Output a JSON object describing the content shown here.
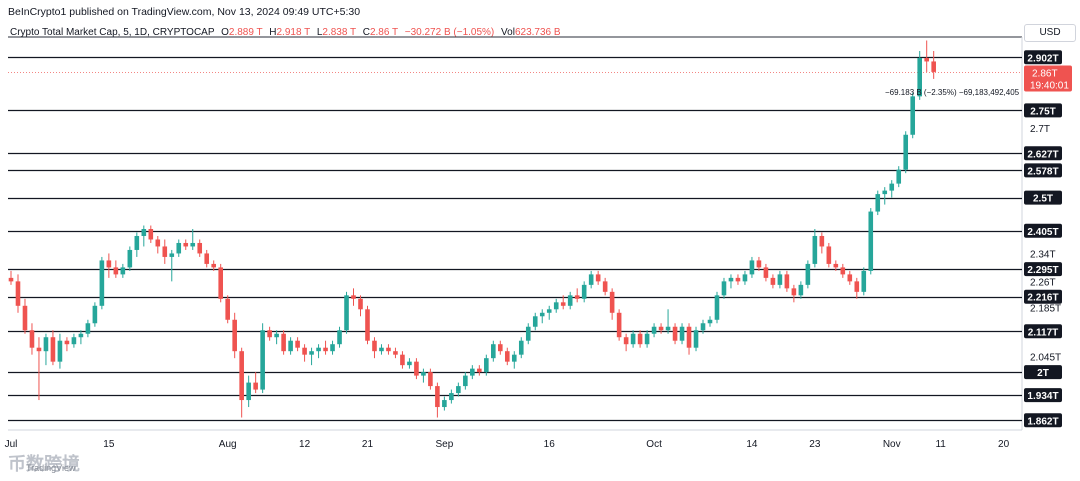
{
  "header": {
    "published_line": "BeInCrypto1 published on TradingView.com, Nov 13, 2024 09:49 UTC+5:30",
    "symbol": "Crypto Total Market Cap, 5, 1D, CRYPTOCAP",
    "open_label": "O",
    "open": "2.889 T",
    "high_label": "H",
    "high": "2.918 T",
    "low_label": "L",
    "low": "2.838 T",
    "close_label": "C",
    "close": "2.86 T",
    "change": "−30.272 B (−1.05%)",
    "vol_label": "Vol",
    "vol": "623.736 B"
  },
  "currency_button": "USD",
  "watermark": {
    "text": "币数跨境",
    "brand": "TradingView"
  },
  "colors": {
    "up": "#26a69a",
    "down": "#ef5350",
    "level_line": "#131722",
    "tag_bg": "#131722",
    "price_tag": "#ef5350"
  },
  "chart_data": {
    "type": "candlestick",
    "ylim": [
      1.84,
      2.95
    ],
    "x_labels": [
      "Jul",
      "15",
      "Aug",
      "12",
      "21",
      "Sep",
      "16",
      "Oct",
      "14",
      "23",
      "Nov",
      "11",
      "20"
    ],
    "x_label_days": [
      0,
      14,
      31,
      42,
      51,
      62,
      77,
      92,
      106,
      115,
      126,
      133,
      142
    ],
    "level_tags": [
      "2.902T",
      "2.75T",
      "2.627T",
      "2.578T",
      "2.5T",
      "2.405T",
      "2.295T",
      "2.216T",
      "2.117T",
      "2T",
      "1.934T",
      "1.862T"
    ],
    "levels": [
      2.902,
      2.75,
      2.627,
      2.578,
      2.5,
      2.405,
      2.295,
      2.216,
      2.117,
      2.0,
      1.934,
      1.862
    ],
    "axis_labels": [
      "2.7T",
      "2.34T",
      "2.26T",
      "2.185T",
      "2.045T"
    ],
    "axis_values": [
      2.7,
      2.34,
      2.26,
      2.185,
      2.045
    ],
    "current_price_tag": "2.86T",
    "countdown_tag": "19:40:01",
    "current_price": 2.86,
    "annotation": "−69.183 B (−2.35%) −69,183,492,405",
    "candles": [
      {
        "d": 0,
        "o": 2.27,
        "h": 2.29,
        "l": 2.25,
        "c": 2.26
      },
      {
        "d": 1,
        "o": 2.26,
        "h": 2.28,
        "l": 2.17,
        "c": 2.19
      },
      {
        "d": 2,
        "o": 2.19,
        "h": 2.21,
        "l": 2.11,
        "c": 2.12
      },
      {
        "d": 3,
        "o": 2.12,
        "h": 2.14,
        "l": 2.05,
        "c": 2.07
      },
      {
        "d": 4,
        "o": 2.07,
        "h": 2.1,
        "l": 1.92,
        "c": 2.06
      },
      {
        "d": 5,
        "o": 2.06,
        "h": 2.11,
        "l": 2.02,
        "c": 2.1
      },
      {
        "d": 6,
        "o": 2.1,
        "h": 2.12,
        "l": 2.02,
        "c": 2.03
      },
      {
        "d": 7,
        "o": 2.03,
        "h": 2.11,
        "l": 2.01,
        "c": 2.09
      },
      {
        "d": 8,
        "o": 2.09,
        "h": 2.1,
        "l": 2.06,
        "c": 2.08
      },
      {
        "d": 9,
        "o": 2.08,
        "h": 2.11,
        "l": 2.07,
        "c": 2.1
      },
      {
        "d": 10,
        "o": 2.1,
        "h": 2.12,
        "l": 2.08,
        "c": 2.11
      },
      {
        "d": 11,
        "o": 2.11,
        "h": 2.15,
        "l": 2.1,
        "c": 2.14
      },
      {
        "d": 12,
        "o": 2.14,
        "h": 2.2,
        "l": 2.13,
        "c": 2.19
      },
      {
        "d": 13,
        "o": 2.19,
        "h": 2.33,
        "l": 2.18,
        "c": 2.32
      },
      {
        "d": 14,
        "o": 2.32,
        "h": 2.34,
        "l": 2.27,
        "c": 2.3
      },
      {
        "d": 15,
        "o": 2.3,
        "h": 2.32,
        "l": 2.27,
        "c": 2.28
      },
      {
        "d": 16,
        "o": 2.28,
        "h": 2.31,
        "l": 2.27,
        "c": 2.3
      },
      {
        "d": 17,
        "o": 2.3,
        "h": 2.36,
        "l": 2.29,
        "c": 2.35
      },
      {
        "d": 18,
        "o": 2.35,
        "h": 2.4,
        "l": 2.33,
        "c": 2.39
      },
      {
        "d": 19,
        "o": 2.39,
        "h": 2.42,
        "l": 2.36,
        "c": 2.41
      },
      {
        "d": 20,
        "o": 2.41,
        "h": 2.42,
        "l": 2.37,
        "c": 2.38
      },
      {
        "d": 21,
        "o": 2.38,
        "h": 2.39,
        "l": 2.34,
        "c": 2.36
      },
      {
        "d": 22,
        "o": 2.36,
        "h": 2.38,
        "l": 2.31,
        "c": 2.33
      },
      {
        "d": 23,
        "o": 2.33,
        "h": 2.35,
        "l": 2.26,
        "c": 2.34
      },
      {
        "d": 24,
        "o": 2.34,
        "h": 2.38,
        "l": 2.33,
        "c": 2.37
      },
      {
        "d": 25,
        "o": 2.37,
        "h": 2.38,
        "l": 2.35,
        "c": 2.36
      },
      {
        "d": 26,
        "o": 2.36,
        "h": 2.41,
        "l": 2.35,
        "c": 2.37
      },
      {
        "d": 27,
        "o": 2.37,
        "h": 2.38,
        "l": 2.33,
        "c": 2.34
      },
      {
        "d": 28,
        "o": 2.34,
        "h": 2.35,
        "l": 2.3,
        "c": 2.31
      },
      {
        "d": 29,
        "o": 2.31,
        "h": 2.32,
        "l": 2.29,
        "c": 2.3
      },
      {
        "d": 30,
        "o": 2.3,
        "h": 2.31,
        "l": 2.2,
        "c": 2.21
      },
      {
        "d": 31,
        "o": 2.21,
        "h": 2.22,
        "l": 2.14,
        "c": 2.15
      },
      {
        "d": 32,
        "o": 2.15,
        "h": 2.17,
        "l": 2.04,
        "c": 2.06
      },
      {
        "d": 33,
        "o": 2.06,
        "h": 2.07,
        "l": 1.87,
        "c": 1.92
      },
      {
        "d": 34,
        "o": 1.92,
        "h": 1.99,
        "l": 1.9,
        "c": 1.97
      },
      {
        "d": 35,
        "o": 1.97,
        "h": 2.0,
        "l": 1.94,
        "c": 1.95
      },
      {
        "d": 36,
        "o": 1.95,
        "h": 2.14,
        "l": 1.94,
        "c": 2.12
      },
      {
        "d": 37,
        "o": 2.12,
        "h": 2.13,
        "l": 2.09,
        "c": 2.1
      },
      {
        "d": 38,
        "o": 2.1,
        "h": 2.12,
        "l": 2.08,
        "c": 2.11
      },
      {
        "d": 39,
        "o": 2.11,
        "h": 2.12,
        "l": 2.05,
        "c": 2.06
      },
      {
        "d": 40,
        "o": 2.06,
        "h": 2.1,
        "l": 2.05,
        "c": 2.09
      },
      {
        "d": 41,
        "o": 2.09,
        "h": 2.1,
        "l": 2.06,
        "c": 2.07
      },
      {
        "d": 42,
        "o": 2.07,
        "h": 2.08,
        "l": 2.03,
        "c": 2.05
      },
      {
        "d": 43,
        "o": 2.05,
        "h": 2.07,
        "l": 2.02,
        "c": 2.06
      },
      {
        "d": 44,
        "o": 2.06,
        "h": 2.08,
        "l": 2.04,
        "c": 2.07
      },
      {
        "d": 45,
        "o": 2.07,
        "h": 2.09,
        "l": 2.05,
        "c": 2.06
      },
      {
        "d": 46,
        "o": 2.06,
        "h": 2.09,
        "l": 2.05,
        "c": 2.08
      },
      {
        "d": 47,
        "o": 2.08,
        "h": 2.13,
        "l": 2.07,
        "c": 2.12
      },
      {
        "d": 48,
        "o": 2.12,
        "h": 2.23,
        "l": 2.11,
        "c": 2.22
      },
      {
        "d": 49,
        "o": 2.22,
        "h": 2.24,
        "l": 2.19,
        "c": 2.21
      },
      {
        "d": 50,
        "o": 2.21,
        "h": 2.22,
        "l": 2.16,
        "c": 2.18
      },
      {
        "d": 51,
        "o": 2.18,
        "h": 2.19,
        "l": 2.08,
        "c": 2.09
      },
      {
        "d": 52,
        "o": 2.09,
        "h": 2.1,
        "l": 2.04,
        "c": 2.06
      },
      {
        "d": 53,
        "o": 2.06,
        "h": 2.08,
        "l": 2.05,
        "c": 2.07
      },
      {
        "d": 54,
        "o": 2.07,
        "h": 2.08,
        "l": 2.05,
        "c": 2.06
      },
      {
        "d": 55,
        "o": 2.06,
        "h": 2.07,
        "l": 2.04,
        "c": 2.05
      },
      {
        "d": 56,
        "o": 2.05,
        "h": 2.06,
        "l": 2.01,
        "c": 2.02
      },
      {
        "d": 57,
        "o": 2.02,
        "h": 2.04,
        "l": 2.01,
        "c": 2.03
      },
      {
        "d": 58,
        "o": 2.03,
        "h": 2.04,
        "l": 1.98,
        "c": 1.99
      },
      {
        "d": 59,
        "o": 1.99,
        "h": 2.01,
        "l": 1.97,
        "c": 2.0
      },
      {
        "d": 60,
        "o": 2.0,
        "h": 2.01,
        "l": 1.95,
        "c": 1.96
      },
      {
        "d": 61,
        "o": 1.96,
        "h": 1.97,
        "l": 1.87,
        "c": 1.9
      },
      {
        "d": 62,
        "o": 1.9,
        "h": 1.93,
        "l": 1.89,
        "c": 1.92
      },
      {
        "d": 63,
        "o": 1.92,
        "h": 1.95,
        "l": 1.91,
        "c": 1.94
      },
      {
        "d": 64,
        "o": 1.94,
        "h": 1.97,
        "l": 1.93,
        "c": 1.96
      },
      {
        "d": 65,
        "o": 1.96,
        "h": 2.0,
        "l": 1.95,
        "c": 1.99
      },
      {
        "d": 66,
        "o": 1.99,
        "h": 2.02,
        "l": 1.98,
        "c": 2.01
      },
      {
        "d": 67,
        "o": 2.01,
        "h": 2.02,
        "l": 1.99,
        "c": 2.0
      },
      {
        "d": 68,
        "o": 2.0,
        "h": 2.05,
        "l": 1.99,
        "c": 2.04
      },
      {
        "d": 69,
        "o": 2.04,
        "h": 2.09,
        "l": 2.03,
        "c": 2.08
      },
      {
        "d": 70,
        "o": 2.08,
        "h": 2.09,
        "l": 2.05,
        "c": 2.06
      },
      {
        "d": 71,
        "o": 2.06,
        "h": 2.07,
        "l": 2.02,
        "c": 2.03
      },
      {
        "d": 72,
        "o": 2.03,
        "h": 2.06,
        "l": 2.01,
        "c": 2.05
      },
      {
        "d": 73,
        "o": 2.05,
        "h": 2.1,
        "l": 2.04,
        "c": 2.09
      },
      {
        "d": 74,
        "o": 2.09,
        "h": 2.14,
        "l": 2.08,
        "c": 2.13
      },
      {
        "d": 75,
        "o": 2.13,
        "h": 2.17,
        "l": 2.12,
        "c": 2.16
      },
      {
        "d": 76,
        "o": 2.16,
        "h": 2.18,
        "l": 2.14,
        "c": 2.17
      },
      {
        "d": 77,
        "o": 2.17,
        "h": 2.19,
        "l": 2.15,
        "c": 2.18
      },
      {
        "d": 78,
        "o": 2.18,
        "h": 2.21,
        "l": 2.17,
        "c": 2.2
      },
      {
        "d": 79,
        "o": 2.2,
        "h": 2.22,
        "l": 2.18,
        "c": 2.19
      },
      {
        "d": 80,
        "o": 2.19,
        "h": 2.23,
        "l": 2.18,
        "c": 2.22
      },
      {
        "d": 81,
        "o": 2.22,
        "h": 2.24,
        "l": 2.2,
        "c": 2.21
      },
      {
        "d": 82,
        "o": 2.21,
        "h": 2.26,
        "l": 2.2,
        "c": 2.25
      },
      {
        "d": 83,
        "o": 2.25,
        "h": 2.29,
        "l": 2.24,
        "c": 2.28
      },
      {
        "d": 84,
        "o": 2.28,
        "h": 2.29,
        "l": 2.25,
        "c": 2.26
      },
      {
        "d": 85,
        "o": 2.26,
        "h": 2.27,
        "l": 2.22,
        "c": 2.23
      },
      {
        "d": 86,
        "o": 2.23,
        "h": 2.24,
        "l": 2.15,
        "c": 2.17
      },
      {
        "d": 87,
        "o": 2.17,
        "h": 2.18,
        "l": 2.09,
        "c": 2.1
      },
      {
        "d": 88,
        "o": 2.1,
        "h": 2.11,
        "l": 2.06,
        "c": 2.08
      },
      {
        "d": 89,
        "o": 2.08,
        "h": 2.12,
        "l": 2.07,
        "c": 2.11
      },
      {
        "d": 90,
        "o": 2.11,
        "h": 2.12,
        "l": 2.07,
        "c": 2.08
      },
      {
        "d": 91,
        "o": 2.08,
        "h": 2.12,
        "l": 2.07,
        "c": 2.11
      },
      {
        "d": 92,
        "o": 2.11,
        "h": 2.14,
        "l": 2.1,
        "c": 2.13
      },
      {
        "d": 93,
        "o": 2.13,
        "h": 2.14,
        "l": 2.11,
        "c": 2.12
      },
      {
        "d": 94,
        "o": 2.12,
        "h": 2.18,
        "l": 2.11,
        "c": 2.13
      },
      {
        "d": 95,
        "o": 2.13,
        "h": 2.14,
        "l": 2.08,
        "c": 2.09
      },
      {
        "d": 96,
        "o": 2.09,
        "h": 2.14,
        "l": 2.08,
        "c": 2.13
      },
      {
        "d": 97,
        "o": 2.13,
        "h": 2.14,
        "l": 2.05,
        "c": 2.07
      },
      {
        "d": 98,
        "o": 2.07,
        "h": 2.13,
        "l": 2.06,
        "c": 2.12
      },
      {
        "d": 99,
        "o": 2.12,
        "h": 2.15,
        "l": 2.11,
        "c": 2.14
      },
      {
        "d": 100,
        "o": 2.14,
        "h": 2.16,
        "l": 2.13,
        "c": 2.15
      },
      {
        "d": 101,
        "o": 2.15,
        "h": 2.23,
        "l": 2.14,
        "c": 2.22
      },
      {
        "d": 102,
        "o": 2.22,
        "h": 2.27,
        "l": 2.21,
        "c": 2.26
      },
      {
        "d": 103,
        "o": 2.26,
        "h": 2.28,
        "l": 2.24,
        "c": 2.27
      },
      {
        "d": 104,
        "o": 2.27,
        "h": 2.28,
        "l": 2.25,
        "c": 2.26
      },
      {
        "d": 105,
        "o": 2.26,
        "h": 2.29,
        "l": 2.25,
        "c": 2.28
      },
      {
        "d": 106,
        "o": 2.28,
        "h": 2.33,
        "l": 2.27,
        "c": 2.32
      },
      {
        "d": 107,
        "o": 2.32,
        "h": 2.33,
        "l": 2.29,
        "c": 2.3
      },
      {
        "d": 108,
        "o": 2.3,
        "h": 2.31,
        "l": 2.26,
        "c": 2.27
      },
      {
        "d": 109,
        "o": 2.27,
        "h": 2.28,
        "l": 2.24,
        "c": 2.25
      },
      {
        "d": 110,
        "o": 2.25,
        "h": 2.29,
        "l": 2.24,
        "c": 2.28
      },
      {
        "d": 111,
        "o": 2.28,
        "h": 2.29,
        "l": 2.23,
        "c": 2.24
      },
      {
        "d": 112,
        "o": 2.24,
        "h": 2.25,
        "l": 2.2,
        "c": 2.22
      },
      {
        "d": 113,
        "o": 2.22,
        "h": 2.26,
        "l": 2.21,
        "c": 2.25
      },
      {
        "d": 114,
        "o": 2.25,
        "h": 2.32,
        "l": 2.24,
        "c": 2.31
      },
      {
        "d": 115,
        "o": 2.31,
        "h": 2.41,
        "l": 2.3,
        "c": 2.39
      },
      {
        "d": 116,
        "o": 2.39,
        "h": 2.4,
        "l": 2.34,
        "c": 2.36
      },
      {
        "d": 117,
        "o": 2.36,
        "h": 2.37,
        "l": 2.3,
        "c": 2.31
      },
      {
        "d": 118,
        "o": 2.31,
        "h": 2.32,
        "l": 2.29,
        "c": 2.3
      },
      {
        "d": 119,
        "o": 2.3,
        "h": 2.31,
        "l": 2.27,
        "c": 2.28
      },
      {
        "d": 120,
        "o": 2.28,
        "h": 2.29,
        "l": 2.25,
        "c": 2.26
      },
      {
        "d": 121,
        "o": 2.26,
        "h": 2.27,
        "l": 2.21,
        "c": 2.23
      },
      {
        "d": 122,
        "o": 2.23,
        "h": 2.3,
        "l": 2.22,
        "c": 2.29
      },
      {
        "d": 123,
        "o": 2.29,
        "h": 2.47,
        "l": 2.28,
        "c": 2.46
      },
      {
        "d": 124,
        "o": 2.46,
        "h": 2.52,
        "l": 2.45,
        "c": 2.51
      },
      {
        "d": 125,
        "o": 2.51,
        "h": 2.53,
        "l": 2.48,
        "c": 2.52
      },
      {
        "d": 126,
        "o": 2.52,
        "h": 2.55,
        "l": 2.5,
        "c": 2.54
      },
      {
        "d": 127,
        "o": 2.54,
        "h": 2.59,
        "l": 2.53,
        "c": 2.58
      },
      {
        "d": 128,
        "o": 2.58,
        "h": 2.69,
        "l": 2.57,
        "c": 2.68
      },
      {
        "d": 129,
        "o": 2.68,
        "h": 2.8,
        "l": 2.67,
        "c": 2.79
      },
      {
        "d": 130,
        "o": 2.79,
        "h": 2.92,
        "l": 2.78,
        "c": 2.9
      },
      {
        "d": 131,
        "o": 2.9,
        "h": 2.95,
        "l": 2.86,
        "c": 2.89
      },
      {
        "d": 132,
        "o": 2.89,
        "h": 2.92,
        "l": 2.84,
        "c": 2.86
      }
    ]
  }
}
